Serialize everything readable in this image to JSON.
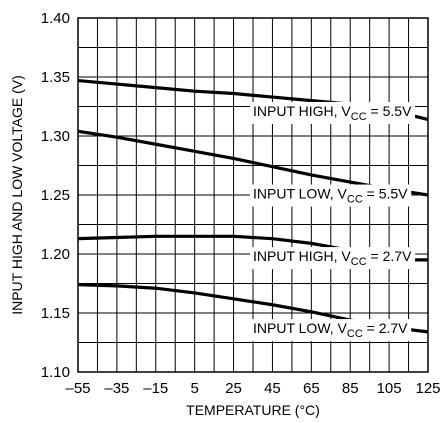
{
  "chart_data": {
    "type": "line",
    "xlabel": "TEMPERATURE (°C)",
    "ylabel": "INPUT HIGH AND LOW VOLTAGE (V)",
    "xlim": [
      -55,
      125
    ],
    "ylim": [
      1.1,
      1.4
    ],
    "xticks": [
      -55,
      -35,
      -15,
      5,
      25,
      45,
      65,
      85,
      105,
      125
    ],
    "xtick_labels": [
      "–55",
      "–35",
      "–15",
      "5",
      "25",
      "45",
      "65",
      "85",
      "105",
      "125"
    ],
    "yticks": [
      1.1,
      1.15,
      1.2,
      1.25,
      1.3,
      1.35,
      1.4
    ],
    "ytick_labels": [
      "1.10",
      "1.15",
      "1.20",
      "1.25",
      "1.30",
      "1.35",
      "1.40"
    ],
    "x_minor_step": 10,
    "y_minor_step": 0.025,
    "grid": true,
    "series": [
      {
        "name_main": "INPUT HIGH, V",
        "name_sub": "CC",
        "name_tail": " = 5.5V",
        "x": [
          -55,
          -35,
          -15,
          5,
          25,
          45,
          65,
          85,
          105,
          125
        ],
        "y": [
          1.347,
          1.344,
          1.341,
          1.338,
          1.336,
          1.333,
          1.33,
          1.327,
          1.322,
          1.314
        ]
      },
      {
        "name_main": "INPUT LOW, V",
        "name_sub": "CC",
        "name_tail": " = 5.5V",
        "x": [
          -55,
          -35,
          -15,
          5,
          25,
          45,
          65,
          85,
          105,
          125
        ],
        "y": [
          1.304,
          1.299,
          1.293,
          1.287,
          1.281,
          1.274,
          1.267,
          1.261,
          1.255,
          1.25
        ]
      },
      {
        "name_main": "INPUT HIGH, V",
        "name_sub": "CC",
        "name_tail": " = 2.7V",
        "x": [
          -55,
          -35,
          -15,
          5,
          25,
          45,
          65,
          85,
          105,
          115,
          125
        ],
        "y": [
          1.213,
          1.214,
          1.215,
          1.215,
          1.215,
          1.213,
          1.209,
          1.203,
          1.197,
          1.195,
          1.195
        ]
      },
      {
        "name_main": "INPUT LOW, V",
        "name_sub": "CC",
        "name_tail": " = 2.7V",
        "x": [
          -55,
          -35,
          -15,
          5,
          25,
          45,
          65,
          85,
          105,
          125
        ],
        "y": [
          1.174,
          1.173,
          1.171,
          1.167,
          1.162,
          1.157,
          1.151,
          1.144,
          1.138,
          1.134
        ]
      }
    ]
  }
}
